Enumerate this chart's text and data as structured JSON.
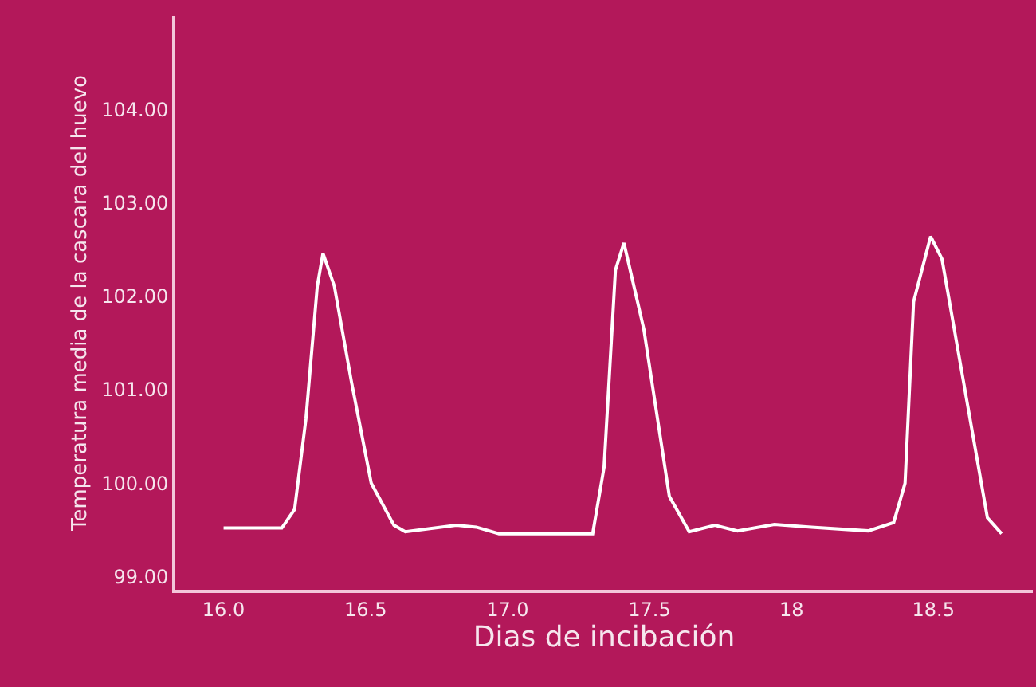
{
  "chart_data": {
    "type": "line",
    "xlabel": "Dias de incibación",
    "ylabel": "Temperatura media de la cascara del huevo",
    "x": [
      16.0,
      16.205,
      16.25,
      16.29,
      16.33,
      16.35,
      16.39,
      16.45,
      16.52,
      16.6,
      16.64,
      16.82,
      16.89,
      16.97,
      17.3,
      17.34,
      17.38,
      17.41,
      17.48,
      17.57,
      17.64,
      17.73,
      17.81,
      17.94,
      18.07,
      18.27,
      18.36,
      18.4,
      18.43,
      18.49,
      18.53,
      18.69,
      18.74
    ],
    "series": [
      {
        "color": "#ffffff",
        "values": [
          99.52,
          99.52,
          99.72,
          100.69,
          102.11,
          102.46,
          102.11,
          101.09,
          100.0,
          99.55,
          99.48,
          99.55,
          99.53,
          99.46,
          99.46,
          100.17,
          102.28,
          102.57,
          101.65,
          99.86,
          99.48,
          99.55,
          99.49,
          99.56,
          99.53,
          99.49,
          99.58,
          100.0,
          101.94,
          102.64,
          102.4,
          99.63,
          99.46
        ]
      }
    ],
    "xlim": [
      15.83,
      18.85
    ],
    "ylim": [
      98.86,
      105.0
    ],
    "xticks": [
      {
        "value": 16,
        "label": "16.0"
      },
      {
        "value": 16.5,
        "label": "16.5"
      },
      {
        "value": 17,
        "label": "17.0"
      },
      {
        "value": 17.5,
        "label": "17.5"
      },
      {
        "value": 18,
        "label": "18"
      },
      {
        "value": 18.5,
        "label": "18.5"
      }
    ],
    "yticks": [
      {
        "value": 99,
        "label": "99.00"
      },
      {
        "value": 100,
        "label": "100.00"
      },
      {
        "value": 101,
        "label": "101.00"
      },
      {
        "value": 102,
        "label": "102.00"
      },
      {
        "value": 103,
        "label": "103.00"
      },
      {
        "value": 104,
        "label": "104.00"
      }
    ],
    "marker": "none",
    "line_style": "solid"
  }
}
